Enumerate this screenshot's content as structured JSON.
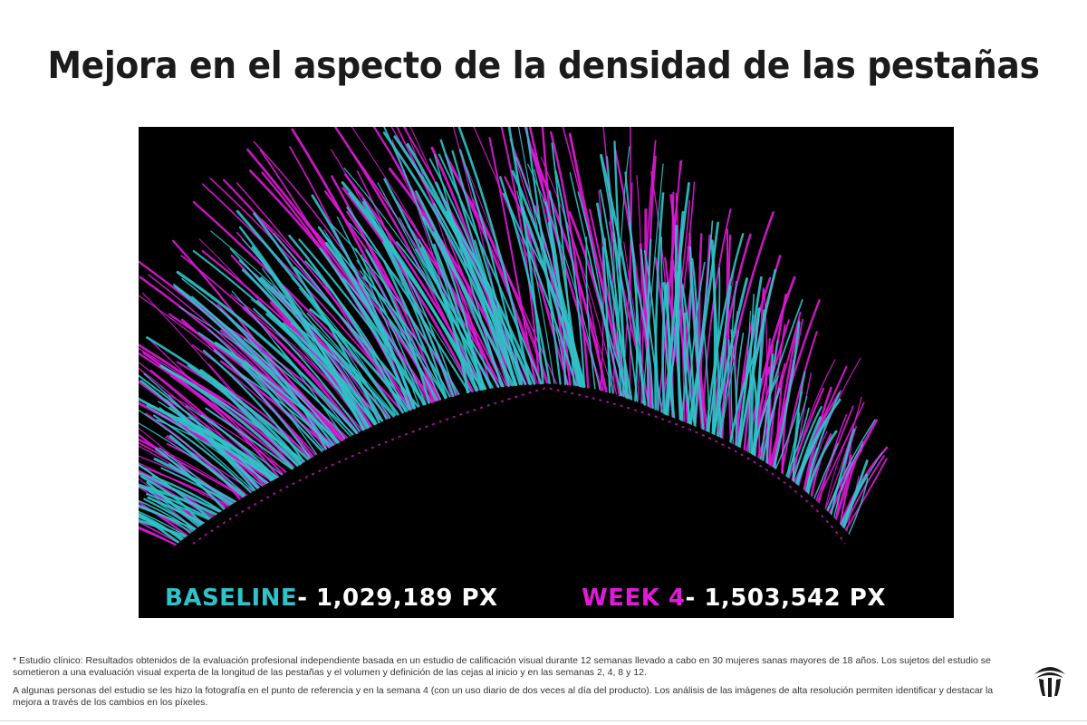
{
  "title": "Mejora en el aspecto de la densidad de las pestañas",
  "image": {
    "baseline_label": "BASELINE",
    "baseline_value": " - 1,029,189 PX",
    "week_label": "WEEK 4",
    "week_value": " - 1,503,542 PX",
    "colors": {
      "baseline": "#2fc3c9",
      "week4": "#e01ad8",
      "background": "#000000"
    }
  },
  "footnotes": {
    "study": "* Estudio clínico: Resultados obtenidos de la evaluación profesional independiente basada en un estudio de calificación visual durante 12 semanas llevado a cabo en 30 mujeres sanas mayores de 18 años. Los sujetos del estudio se sometieron a una evaluación visual experta de la longitud de las pestañas y el volumen y definición de las cejas al inicio y en las semanas 2, 4, 8 y 12.",
    "photo": "A algunas personas del estudio se les hizo la fotografía en el punto de referencia y en la semana 4 (con un uso diario de dos veces al día del producto). Los análisis de las imágenes de alta resolución permiten identificar y destacar la mejora a través de los cambios en los píxeles."
  },
  "logo": {
    "icon": "brand-logo-icon"
  }
}
